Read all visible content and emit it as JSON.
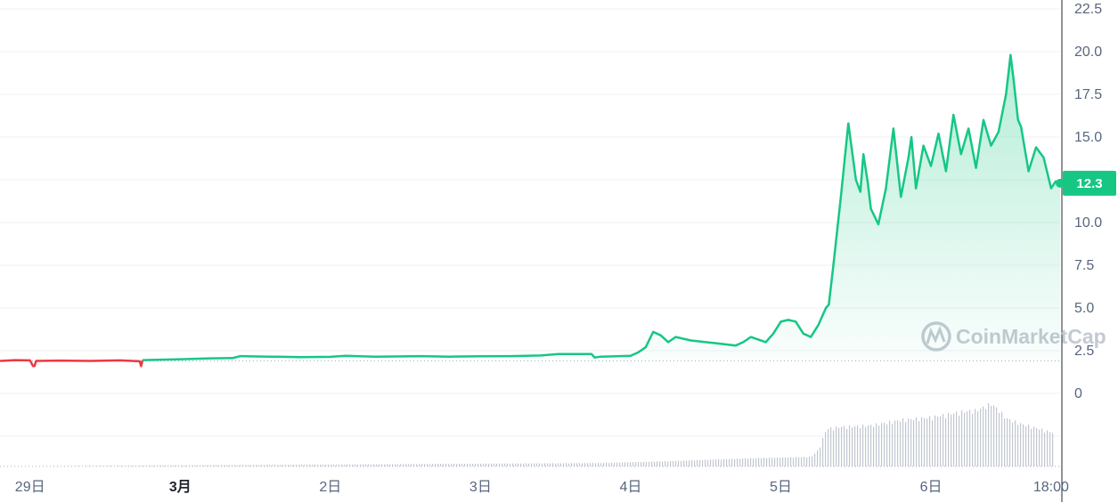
{
  "chart_data": {
    "type": "area",
    "y_ticks": [
      "0",
      "2.5",
      "5.0",
      "7.5",
      "10.0",
      "12.5",
      "15.0",
      "17.5",
      "20.0",
      "22.5"
    ],
    "y_tick_values": [
      0,
      2.5,
      5,
      7.5,
      10,
      12.5,
      15,
      17.5,
      20,
      22.5
    ],
    "ylim": [
      0,
      22.5
    ],
    "x_ticks": [
      "29日",
      "3月",
      "2日",
      "3日",
      "4日",
      "5日",
      "6日",
      "18:00"
    ],
    "x_tick_values": [
      0.2,
      1.2,
      2.2,
      3.2,
      4.2,
      5.2,
      6.2,
      7.0
    ],
    "x_tick_bold": [
      false,
      true,
      false,
      false,
      false,
      false,
      false,
      false
    ],
    "xlim": [
      0,
      7.06
    ],
    "baseline_value": 1.9,
    "current_price": 12.3,
    "current_price_label": "12.3",
    "watermark": "CoinMarketCap",
    "colors": {
      "up": "#16c784",
      "down": "#ea3943",
      "badge": "#16c784",
      "grid": "#eff2f5",
      "volume": "#c1c6cf",
      "baseline": "#a6b0c3"
    },
    "red_segment_end_x": 0.95,
    "series": [
      {
        "values_x": [
          0.0,
          0.1,
          0.2,
          0.22,
          0.23,
          0.24,
          0.4,
          0.6,
          0.8,
          0.93,
          0.94,
          0.95,
          1.2,
          1.4,
          1.55,
          1.6,
          1.8,
          1.85,
          2.0,
          2.2,
          2.3,
          2.5,
          2.8,
          3.0,
          3.2,
          3.4,
          3.6,
          3.72,
          3.94,
          3.96,
          4.0,
          4.2,
          4.25,
          4.3,
          4.35,
          4.4,
          4.45,
          4.5,
          4.6,
          4.7,
          4.8,
          4.9,
          4.95,
          5.0,
          5.1,
          5.15,
          5.2,
          5.25,
          5.3,
          5.35,
          5.4,
          5.45,
          5.5,
          5.52,
          5.55,
          5.6,
          5.65,
          5.7,
          5.73,
          5.75,
          5.78,
          5.8,
          5.85,
          5.9,
          5.95,
          6.0,
          6.05,
          6.07,
          6.1,
          6.15,
          6.2,
          6.25,
          6.3,
          6.35,
          6.4,
          6.45,
          6.5,
          6.55,
          6.6,
          6.65,
          6.7,
          6.73,
          6.75,
          6.78,
          6.8,
          6.85,
          6.9,
          6.95,
          7.0,
          7.03,
          7.06
        ],
        "values_y": [
          1.9,
          1.95,
          1.93,
          1.6,
          1.6,
          1.9,
          1.92,
          1.9,
          1.93,
          1.88,
          1.6,
          1.95,
          2.0,
          2.05,
          2.07,
          2.18,
          2.15,
          2.15,
          2.12,
          2.14,
          2.2,
          2.15,
          2.18,
          2.15,
          2.17,
          2.18,
          2.22,
          2.3,
          2.3,
          2.1,
          2.15,
          2.2,
          2.4,
          2.7,
          3.6,
          3.4,
          3.0,
          3.3,
          3.1,
          3.0,
          2.9,
          2.8,
          3.0,
          3.3,
          3.0,
          3.5,
          4.2,
          4.3,
          4.2,
          3.5,
          3.3,
          4.0,
          5.0,
          5.2,
          7.5,
          11.5,
          15.8,
          12.5,
          11.8,
          14.0,
          12.3,
          10.8,
          9.9,
          12.0,
          15.5,
          11.5,
          13.8,
          15.0,
          12.0,
          14.5,
          13.3,
          15.2,
          13.0,
          16.3,
          14.0,
          15.5,
          13.2,
          16.0,
          14.5,
          15.3,
          17.5,
          19.8,
          18.4,
          16.0,
          15.6,
          13.0,
          14.4,
          13.8,
          12.0,
          12.4,
          12.3
        ]
      }
    ],
    "volume": {
      "values_x": [
        0.0,
        4.0,
        4.5,
        5.0,
        5.4,
        5.45,
        5.5,
        5.6,
        5.8,
        6.0,
        6.1,
        6.2,
        6.4,
        6.5,
        6.6,
        6.65,
        6.7,
        6.8,
        6.9,
        7.0,
        7.06
      ],
      "values_y": [
        0.0,
        0.05,
        0.08,
        0.12,
        0.14,
        0.25,
        0.55,
        0.58,
        0.6,
        0.68,
        0.7,
        0.72,
        0.8,
        0.82,
        0.92,
        0.82,
        0.7,
        0.62,
        0.56,
        0.5,
        0.48
      ]
    }
  }
}
